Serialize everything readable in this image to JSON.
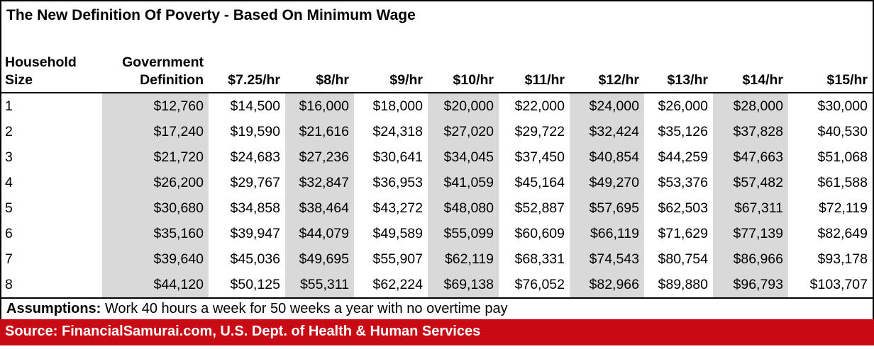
{
  "title": "The New Definition Of Poverty - Based On Minimum Wage",
  "assumptions": {
    "label": "Assumptions:",
    "text": " Work 40 hours a week for 50 weeks a year with no overtime pay"
  },
  "source": "Source: FinancialSamurai.com, U.S. Dept. of Health & Human Services",
  "colors": {
    "stripe_gray": "#D9D9D9",
    "source_red": "#C80A14",
    "border_black": "#000000",
    "source_text_white": "#FFFFFF"
  },
  "chart_data": {
    "type": "table",
    "title": "The New Definition Of Poverty - Based On Minimum Wage",
    "columns": [
      "Household Size",
      "Government Definition",
      "$7.25/hr",
      "$8/hr",
      "$9/hr",
      "$10/hr",
      "$11/hr",
      "$12/hr",
      "$13/hr",
      "$14/hr",
      "$15/hr"
    ],
    "header_display": [
      "Household\nSize",
      "Government\nDefinition",
      "$7.25/hr",
      "$8/hr",
      "$9/hr",
      "$10/hr",
      "$11/hr",
      "$12/hr",
      "$13/hr",
      "$14/hr",
      "$15/hr"
    ],
    "rows": [
      [
        "1",
        "$12,760",
        "$14,500",
        "$16,000",
        "$18,000",
        "$20,000",
        "$22,000",
        "$24,000",
        "$26,000",
        "$28,000",
        "$30,000"
      ],
      [
        "2",
        "$17,240",
        "$19,590",
        "$21,616",
        "$24,318",
        "$27,020",
        "$29,722",
        "$32,424",
        "$35,126",
        "$37,828",
        "$40,530"
      ],
      [
        "3",
        "$21,720",
        "$24,683",
        "$27,236",
        "$30,641",
        "$34,045",
        "$37,450",
        "$40,854",
        "$44,259",
        "$47,663",
        "$51,068"
      ],
      [
        "4",
        "$26,200",
        "$29,767",
        "$32,847",
        "$36,953",
        "$41,059",
        "$45,164",
        "$49,270",
        "$53,376",
        "$57,482",
        "$61,588"
      ],
      [
        "5",
        "$30,680",
        "$34,858",
        "$38,464",
        "$43,272",
        "$48,080",
        "$52,887",
        "$57,695",
        "$62,503",
        "$67,311",
        "$72,119"
      ],
      [
        "6",
        "$35,160",
        "$39,947",
        "$44,079",
        "$49,589",
        "$55,099",
        "$60,609",
        "$66,119",
        "$71,629",
        "$77,139",
        "$82,649"
      ],
      [
        "7",
        "$39,640",
        "$45,036",
        "$49,695",
        "$55,907",
        "$62,119",
        "$68,331",
        "$74,543",
        "$80,754",
        "$86,966",
        "$93,178"
      ],
      [
        "8",
        "$44,120",
        "$50,125",
        "$55,311",
        "$62,224",
        "$69,138",
        "$76,052",
        "$82,966",
        "$89,880",
        "$96,793",
        "$103,707"
      ]
    ],
    "shaded_column_indices": [
      1,
      3,
      5,
      7,
      9
    ],
    "footnote": "Assumptions: Work 40 hours a week for 50 weeks a year with no overtime pay",
    "source": "Source: FinancialSamurai.com, U.S. Dept. of Health & Human Services",
    "layout": {
      "gridlines": "none",
      "header_rule": true,
      "shaded_fill": "#D9D9D9"
    }
  }
}
